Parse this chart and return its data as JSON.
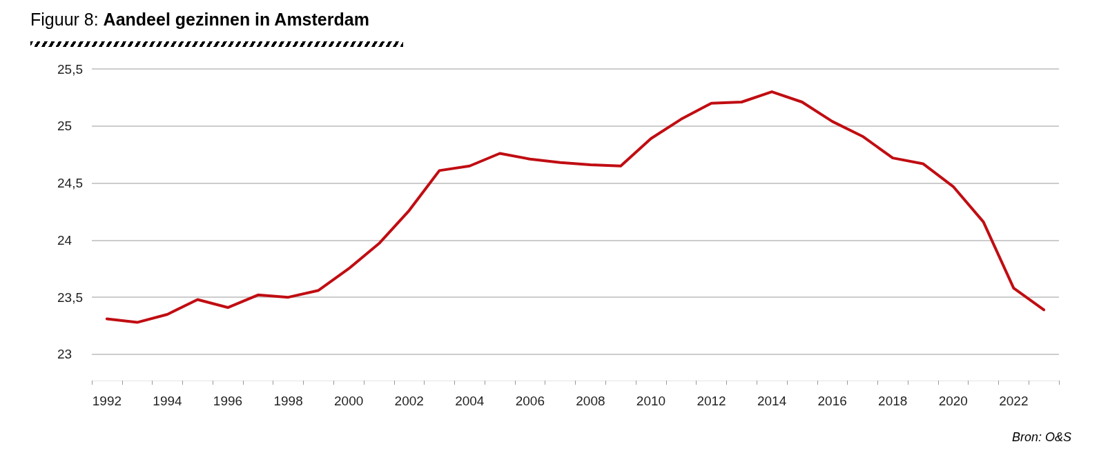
{
  "chart_data": {
    "type": "line",
    "title": "Figuur 8: Aandeel gezinnen in Amsterdam",
    "annotations": [
      "Bron: O&S"
    ],
    "categories": [
      "1992",
      null,
      "1994",
      null,
      "1996",
      null,
      "1998",
      null,
      "2000",
      null,
      "2002",
      null,
      "2004",
      null,
      "2006",
      null,
      "2008",
      null,
      "2010",
      null,
      "2012",
      null,
      "2014",
      null,
      "2016",
      null,
      "2018",
      null,
      "2020",
      null,
      "2022",
      null
    ],
    "series": [
      {
        "color": "#c00d12",
        "values": [
          23.31,
          23.28,
          23.35,
          23.48,
          23.41,
          23.52,
          23.5,
          23.56,
          23.75,
          23.97,
          24.26,
          24.61,
          24.65,
          24.76,
          24.71,
          24.68,
          24.66,
          24.65,
          24.89,
          25.06,
          25.2,
          25.21,
          25.3,
          25.21,
          25.04,
          24.91,
          24.72,
          24.67,
          24.47,
          24.16,
          23.58,
          23.39
        ]
      }
    ],
    "ylim": [
      22.77,
      25.5
    ],
    "yticks": [
      23,
      {
        "value": 23.5,
        "label": "23,5"
      },
      24,
      {
        "value": 24.5,
        "label": "24,5"
      },
      25,
      {
        "value": 25.5,
        "label": "25,5"
      }
    ],
    "grid": "y",
    "marker": "none",
    "line_style": "solid"
  }
}
